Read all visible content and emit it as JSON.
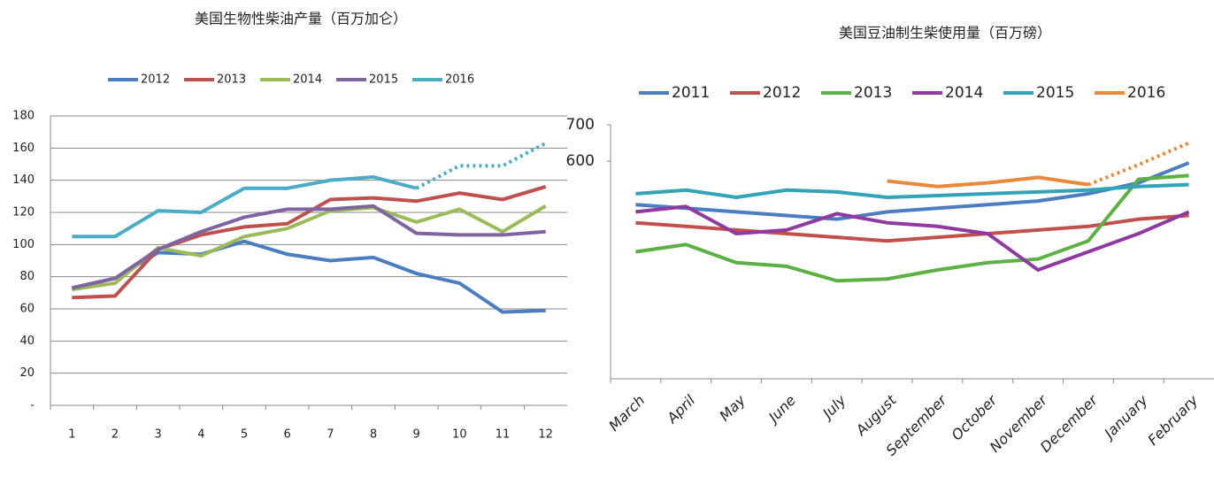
{
  "chart_data": [
    {
      "type": "line",
      "title": "美国生物性柴油产量（百万加仑）",
      "categories": [
        1,
        2,
        3,
        4,
        5,
        6,
        7,
        8,
        9,
        10,
        11,
        12
      ],
      "ylim": [
        0,
        180
      ],
      "yticks": [
        {
          "value": 0,
          "label": "-"
        },
        20,
        40,
        60,
        80,
        100,
        120,
        140,
        160,
        180
      ],
      "grid": true,
      "legend": "top",
      "series": [
        {
          "name": "2012",
          "color": "#4a7ec0",
          "values": [
            73,
            79,
            95,
            94,
            102,
            94,
            90,
            92,
            82,
            76,
            58,
            59
          ]
        },
        {
          "name": "2013",
          "color": "#c0504d",
          "values": [
            67,
            68,
            97,
            106,
            111,
            113,
            128,
            129,
            127,
            132,
            128,
            136
          ]
        },
        {
          "name": "2014",
          "color": "#9bbb59",
          "values": [
            72,
            76,
            98,
            93,
            105,
            110,
            121,
            123,
            114,
            122,
            108,
            124
          ]
        },
        {
          "name": "2015",
          "color": "#8064a2",
          "values": [
            73,
            79,
            97,
            108,
            117,
            122,
            122,
            124,
            107,
            106,
            106,
            108
          ]
        },
        {
          "name": "2016",
          "color": "#4bacc6",
          "values": [
            105,
            105,
            121,
            120,
            135,
            135,
            140,
            142,
            135,
            149,
            149,
            163
          ],
          "dotted_from": 9
        }
      ]
    },
    {
      "type": "line",
      "title": "美国豆油制生柴使用量（百万磅）",
      "categories": [
        "March",
        "April",
        "May",
        "June",
        "July",
        "August",
        "September",
        "October",
        "November",
        "December",
        "January",
        "February"
      ],
      "ylim": [
        0,
        700
      ],
      "yticks": [
        600,
        700
      ],
      "grid": false,
      "legend": "top",
      "series": [
        {
          "name": "2011",
          "color": "#4a7ec0",
          "values": [
            480,
            470,
            460,
            450,
            440,
            460,
            470,
            480,
            490,
            510,
            540,
            595
          ]
        },
        {
          "name": "2012",
          "color": "#c0504d",
          "values": [
            430,
            420,
            410,
            400,
            390,
            380,
            390,
            400,
            410,
            420,
            440,
            450
          ]
        },
        {
          "name": "2013",
          "color": "#5bb143",
          "values": [
            350,
            370,
            320,
            310,
            270,
            275,
            300,
            320,
            330,
            380,
            550,
            560
          ]
        },
        {
          "name": "2014",
          "color": "#8e3aa0",
          "values": [
            460,
            475,
            400,
            410,
            455,
            430,
            420,
            400,
            300,
            350,
            400,
            460
          ]
        },
        {
          "name": "2015",
          "color": "#31a4b8",
          "values": [
            510,
            520,
            500,
            520,
            515,
            500,
            505,
            510,
            515,
            520,
            530,
            535
          ]
        },
        {
          "name": "2016",
          "color": "#e8893a",
          "values": [
            null,
            null,
            null,
            null,
            null,
            545,
            530,
            540,
            555,
            535,
            590,
            650
          ],
          "dotted_from": "December"
        }
      ]
    }
  ]
}
